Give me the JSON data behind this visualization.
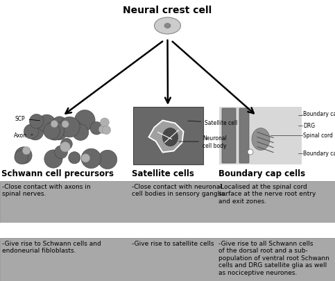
{
  "title": "Neural crest cell",
  "bg_color": "#ffffff",
  "gray_box_color": "#a8a8a8",
  "col1_header": "Schwann cell precursors",
  "col2_header": "Satellite cells",
  "col3_header": "Boundary cap cells",
  "col1_desc": "-Close contact with axons in\nspinal nerves.",
  "col2_desc": "-Close contact with neuronal\ncell bodies in sensory ganglia.",
  "col3_desc": "-Localised at the spinal cord\nsurface at the nerve root entry\nand exit zones.",
  "col1_outcome": "-Give rise to Schwann cells and\nendoneurial fibloblasts.",
  "col2_outcome": "-Give rise to satellite cells",
  "col3_outcome": "-Give rise to all Schwann cells\nof the dorsal root and a sub-\npopulation of ventral root Schwann\ncells and DRG satellite glia as well\nas nociceptive neurones.",
  "text_fontsize": 6.5,
  "header_fontsize": 8.5,
  "title_fontsize": 10
}
